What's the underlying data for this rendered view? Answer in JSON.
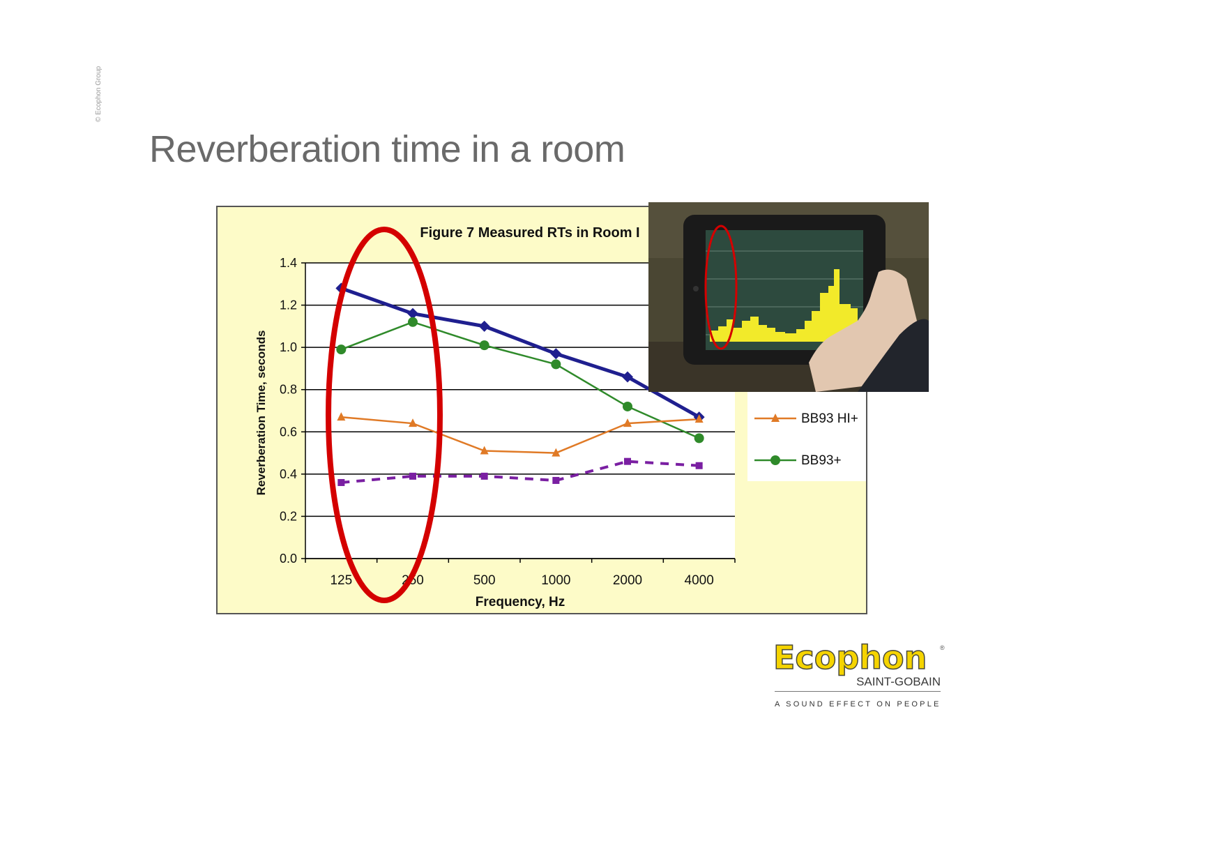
{
  "slide": {
    "title": "Reverberation time in a room",
    "copyright": "© Ecophon Group"
  },
  "logo": {
    "brand": "Ecophon",
    "registered": "®",
    "subbrand": "SAINT-GOBAIN",
    "tagline": "A SOUND EFFECT ON PEOPLE"
  },
  "chart_data": {
    "type": "line",
    "title": "Figure 7  Measured RTs in Room I",
    "xlabel": "Frequency, Hz",
    "ylabel": "Reverberation Time, seconds",
    "categories": [
      "125",
      "250",
      "500",
      "1000",
      "2000",
      "4000"
    ],
    "ylim": [
      0,
      1.4
    ],
    "yticks": [
      "0.0",
      "0.2",
      "0.4",
      "0.6",
      "0.8",
      "1.0",
      "1.2",
      "1.4"
    ],
    "grid": true,
    "legend_position": "right",
    "series": [
      {
        "values": [
          1.28,
          1.16,
          1.1,
          0.97,
          0.86,
          0.67
        ],
        "color": "#1f1f8f",
        "marker": "diamond",
        "style": "solid-thick"
      },
      {
        "values": [
          0.99,
          1.12,
          1.01,
          0.92,
          0.72,
          0.57
        ],
        "color": "#2f8a2a",
        "marker": "circle",
        "style": "solid",
        "name": "BB93+"
      },
      {
        "values": [
          0.67,
          0.64,
          0.51,
          0.5,
          0.64,
          0.66
        ],
        "color": "#e07a26",
        "marker": "triangle",
        "style": "solid",
        "name": "BB93 HI+"
      },
      {
        "values": [
          0.36,
          0.39,
          0.39,
          0.37,
          0.46,
          0.44
        ],
        "color": "#7a1fa2",
        "marker": "square",
        "style": "dashed"
      }
    ],
    "annotations": [
      "red ellipse highlighting 125-250 Hz",
      "inset photo of tablet showing yellow frequency bars"
    ],
    "colors": {
      "background": "#fdfbc8",
      "highlight": "#d40000"
    }
  }
}
